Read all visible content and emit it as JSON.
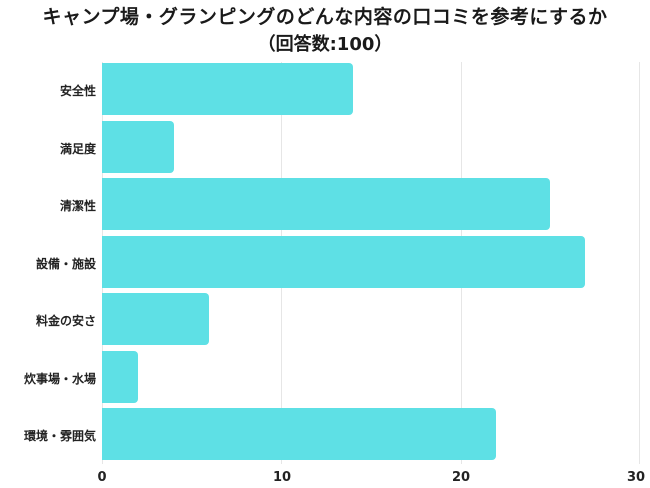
{
  "title": {
    "line1": "キャンプ場・グランピングのどんな内容の口コミを参考にするか",
    "line2": "（回答数:100）"
  },
  "colors": {
    "bar": "#5ee0e5",
    "grid": "#e6e6e6",
    "text": "#222222"
  },
  "chart_data": {
    "type": "bar",
    "orientation": "horizontal",
    "title": "キャンプ場・グランピングのどんな内容の口コミを参考にするか（回答数:100）",
    "categories": [
      "安全性",
      "満足度",
      "清潔性",
      "設備・施設",
      "料金の安さ",
      "炊事場・水場",
      "環境・雰囲気"
    ],
    "values": [
      14,
      4,
      25,
      27,
      6,
      2,
      22
    ],
    "xlabel": "",
    "ylabel": "",
    "xlim": [
      0,
      30
    ],
    "xticks": [
      "0",
      "10",
      "20",
      "30"
    ],
    "grid": true,
    "legend": null
  }
}
